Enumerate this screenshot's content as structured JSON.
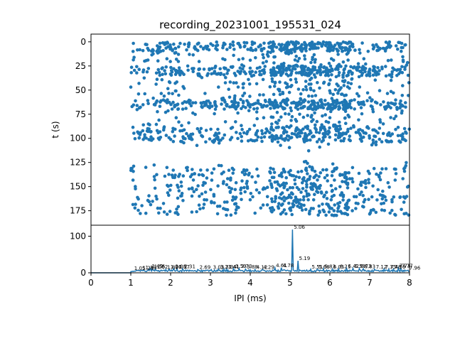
{
  "title": "recording_20231001_195531_024",
  "chart_data": [
    {
      "type": "scatter",
      "name": "raster",
      "title": "recording_20231001_195531_024",
      "xlabel": "",
      "ylabel": "t (s)",
      "xlim": [
        0,
        8
      ],
      "ylim": [
        190,
        -8
      ],
      "y_inverted": true,
      "yticks": [
        0,
        25,
        50,
        75,
        100,
        125,
        150,
        175
      ],
      "x_visible": false,
      "color": "#1f77b4",
      "x_range_of_points": [
        1.0,
        8.0
      ],
      "dense_bands_t": [
        [
          0,
          10
        ],
        [
          25,
          35
        ],
        [
          60,
          70
        ],
        [
          88,
          104
        ],
        [
          130,
          180
        ]
      ],
      "peak_band_x": [
        4.5,
        6.5
      ],
      "point_count_estimate": 2200
    },
    {
      "type": "line",
      "name": "ipi-histogram",
      "xlabel": "IPI (ms)",
      "ylabel": "",
      "xlim": [
        0,
        8
      ],
      "ylim": [
        0,
        130
      ],
      "xticks": [
        0,
        1,
        2,
        3,
        4,
        5,
        6,
        7,
        8
      ],
      "yticks": [
        0,
        100
      ],
      "color": "#1f77b4",
      "baseline": 3,
      "peaks": [
        {
          "x": 1.05,
          "y": 6,
          "label": "1.05"
        },
        {
          "x": 1.26,
          "y": 7,
          "label": "1.26"
        },
        {
          "x": 1.33,
          "y": 8,
          "label": "1.33"
        },
        {
          "x": 1.49,
          "y": 12,
          "label": "1.49"
        },
        {
          "x": 1.55,
          "y": 11,
          "label": "1.55"
        },
        {
          "x": 1.62,
          "y": 10,
          "label": "1.62"
        },
        {
          "x": 1.88,
          "y": 9,
          "label": "1.88"
        },
        {
          "x": 1.96,
          "y": 10,
          "label": "1.96"
        },
        {
          "x": 2.08,
          "y": 11,
          "label": "2.08"
        },
        {
          "x": 2.17,
          "y": 10,
          "label": "2.17"
        },
        {
          "x": 2.31,
          "y": 11,
          "label": "2.31"
        },
        {
          "x": 2.69,
          "y": 9,
          "label": "2.69"
        },
        {
          "x": 3.03,
          "y": 9,
          "label": "3.03"
        },
        {
          "x": 3.21,
          "y": 10,
          "label": "3.21"
        },
        {
          "x": 3.34,
          "y": 10,
          "label": "3.34"
        },
        {
          "x": 3.41,
          "y": 10,
          "label": "3.41"
        },
        {
          "x": 3.59,
          "y": 12,
          "label": "3.59"
        },
        {
          "x": 3.73,
          "y": 12,
          "label": "3.73"
        },
        {
          "x": 3.88,
          "y": 10,
          "label": "3.88"
        },
        {
          "x": 4.12,
          "y": 9,
          "label": "4.12"
        },
        {
          "x": 4.29,
          "y": 9,
          "label": "4.29"
        },
        {
          "x": 4.61,
          "y": 14,
          "label": "4.61"
        },
        {
          "x": 4.78,
          "y": 14,
          "label": "4.78"
        },
        {
          "x": 5.06,
          "y": 118,
          "label": "5.06"
        },
        {
          "x": 5.19,
          "y": 33,
          "label": "5.19"
        },
        {
          "x": 5.51,
          "y": 10,
          "label": "5.51"
        },
        {
          "x": 5.68,
          "y": 10,
          "label": "5.68"
        },
        {
          "x": 5.83,
          "y": 11,
          "label": "5.83"
        },
        {
          "x": 6.05,
          "y": 10,
          "label": "6.05"
        },
        {
          "x": 6.21,
          "y": 11,
          "label": "6.21"
        },
        {
          "x": 6.42,
          "y": 12,
          "label": "6.42"
        },
        {
          "x": 6.58,
          "y": 12,
          "label": "6.58"
        },
        {
          "x": 6.73,
          "y": 12,
          "label": "6.73"
        },
        {
          "x": 6.83,
          "y": 11,
          "label": "6.83"
        },
        {
          "x": 7.12,
          "y": 10,
          "label": "7.12"
        },
        {
          "x": 7.35,
          "y": 10,
          "label": "7.35"
        },
        {
          "x": 7.48,
          "y": 10,
          "label": "7.48"
        },
        {
          "x": 7.59,
          "y": 10,
          "label": "7.59"
        },
        {
          "x": 7.71,
          "y": 13,
          "label": "7.71"
        },
        {
          "x": 7.77,
          "y": 13,
          "label": "7.77"
        },
        {
          "x": 7.96,
          "y": 7,
          "label": "7.96"
        }
      ]
    }
  ]
}
